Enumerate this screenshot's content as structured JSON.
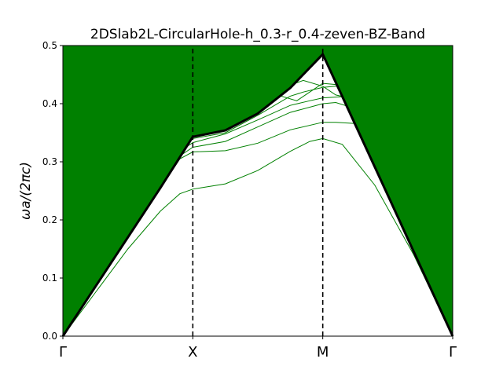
{
  "chart_data": {
    "type": "line",
    "title": "2DSlab2L-CircularHole-h_0.3-r_0.4-zeven-BZ-Band",
    "ylabel": "ωa/(2πc)",
    "xlabel": "",
    "ylim": [
      0,
      0.5
    ],
    "yticks": [
      "0.0",
      "0.1",
      "0.2",
      "0.3",
      "0.4",
      "0.5"
    ],
    "xlim": [
      0,
      3
    ],
    "kpoints": [
      {
        "label": "Γ",
        "x": 0
      },
      {
        "label": "X",
        "x": 1
      },
      {
        "label": "M",
        "x": 2
      },
      {
        "label": "Γ",
        "x": 3
      }
    ],
    "grid": false,
    "colors": {
      "light_cone": "#008000",
      "bands": "#008000",
      "light_line": "#000000",
      "divider": "#000000"
    },
    "light_line": {
      "x": [
        0,
        0.25,
        0.5,
        0.75,
        1.0,
        1.25,
        1.5,
        1.75,
        2.0,
        2.25,
        2.5,
        2.75,
        3.0
      ],
      "y": [
        0,
        0.085,
        0.17,
        0.255,
        0.343,
        0.354,
        0.383,
        0.427,
        0.485,
        0.364,
        0.243,
        0.121,
        0
      ]
    },
    "series": [
      {
        "x": [
          0,
          0.25,
          0.5,
          0.75,
          0.9,
          1.0,
          1.25,
          1.5,
          1.75,
          1.9,
          2.0,
          2.15,
          2.4,
          2.7,
          3.0
        ],
        "y": [
          0,
          0.075,
          0.15,
          0.215,
          0.245,
          0.253,
          0.262,
          0.285,
          0.318,
          0.335,
          0.34,
          0.33,
          0.26,
          0.14,
          0
        ]
      },
      {
        "x": [
          0,
          0.5,
          0.9,
          1.0,
          1.25,
          1.5,
          1.75,
          2.0,
          2.1,
          2.25
        ],
        "y": [
          0,
          0.17,
          0.305,
          0.317,
          0.319,
          0.332,
          0.355,
          0.368,
          0.368,
          0.366
        ]
      },
      {
        "x": [
          0,
          0.5,
          0.9,
          1.0,
          1.25,
          1.5,
          1.75,
          2.0,
          2.1,
          2.2,
          2.4,
          2.7,
          3.0
        ],
        "y": [
          0,
          0.17,
          0.31,
          0.325,
          0.335,
          0.36,
          0.385,
          0.4,
          0.402,
          0.395,
          0.33,
          0.15,
          0
        ]
      },
      {
        "x": [
          0.9,
          1.0,
          1.25,
          1.5,
          1.75,
          1.9,
          2.0,
          2.15
        ],
        "y": [
          0.318,
          0.333,
          0.348,
          0.372,
          0.397,
          0.405,
          0.41,
          0.412
        ]
      },
      {
        "x": [
          1.0,
          1.25,
          1.5,
          1.75,
          1.85,
          2.0,
          2.1,
          2.2,
          2.3
        ],
        "y": [
          0.34,
          0.35,
          0.38,
          0.413,
          0.42,
          0.428,
          0.43,
          0.43,
          0.42
        ]
      },
      {
        "x": [
          1.5,
          1.6,
          1.75,
          1.85,
          2.0,
          2.1,
          2.2,
          2.3
        ],
        "y": [
          0.41,
          0.418,
          0.432,
          0.44,
          0.43,
          0.415,
          0.41,
          0.415
        ]
      },
      {
        "x": [
          1.55,
          1.65,
          1.8,
          1.9,
          2.0,
          2.1,
          2.2
        ],
        "y": [
          0.42,
          0.415,
          0.405,
          0.42,
          0.435,
          0.433,
          0.425
        ]
      }
    ]
  }
}
